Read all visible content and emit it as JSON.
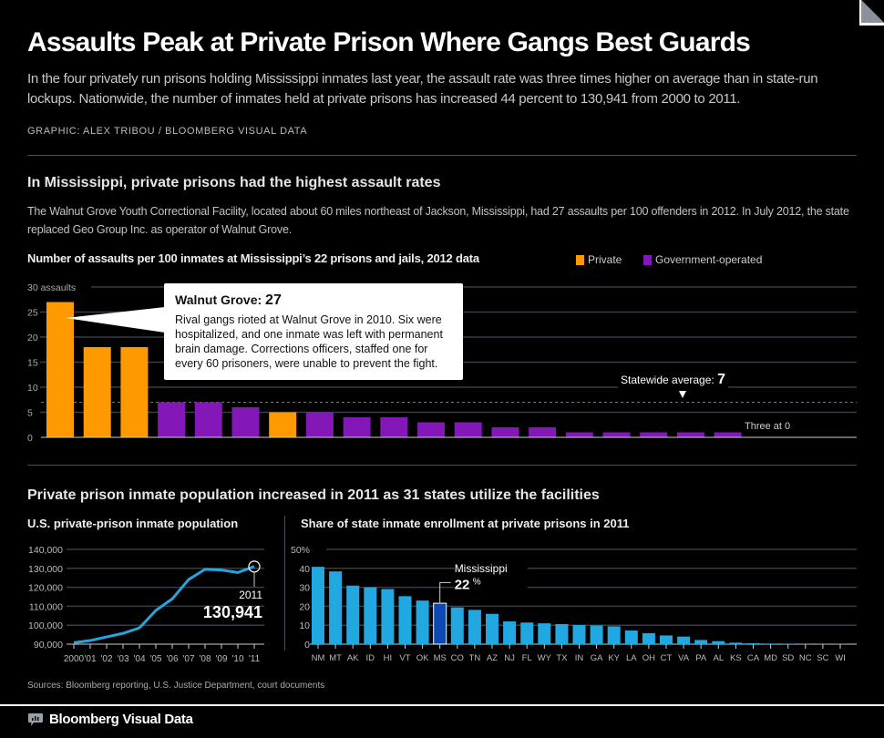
{
  "header": {
    "title": "Assaults Peak at Private Prison Where Gangs Best Guards",
    "subtitle": "In the four privately run prisons holding Mississippi inmates last year, the assault rate was three times higher on average than in state-run lockups. Nationwide, the number of inmates held at private prisons has increased 44 percent to 130,941 from 2000 to 2011.",
    "credit": "GRAPHIC: ALEX TRIBOU / BLOOMBERG VISUAL DATA",
    "corner_icon": "page-curl-icon"
  },
  "section1": {
    "title": "In Mississippi, private prisons had the highest assault rates",
    "description": "The Walnut Grove Youth Correctional Facility, located about 60 miles northeast of Jackson, Mississippi, had 27 assaults per 100 offenders in 2012. In July 2012, the state replaced Geo Group Inc. as operator of Walnut Grove."
  },
  "section2": {
    "title": "Private prison inmate population increased in 2011 as 31 states utilize the facilities"
  },
  "colors": {
    "private": "#FF9900",
    "government": "#8317B8",
    "line": "#29A3DC",
    "share_bar": "#21A8E0",
    "highlight": "#0D49B3",
    "grid": "#3a3d47"
  },
  "chart_data": [
    {
      "type": "bar",
      "title": "Number of assaults per 100 inmates at Mississippi’s 22 prisons and jails, 2012 data",
      "ylabel": "assaults",
      "ylim": [
        0,
        30
      ],
      "yticks": [
        0,
        5,
        10,
        15,
        20,
        25,
        30
      ],
      "ytick_labels": [
        "0",
        "5",
        "10",
        "15",
        "20",
        "25",
        "30 assaults"
      ],
      "legend": [
        {
          "name": "Private",
          "key": "private"
        },
        {
          "name": "Government-operated",
          "key": "government"
        }
      ],
      "legend_position": "top-right",
      "values": [
        27,
        18,
        18,
        7,
        7,
        6,
        5,
        5,
        4,
        4,
        3,
        3,
        2,
        2,
        1,
        1,
        1,
        1,
        1
      ],
      "types": [
        "private",
        "private",
        "private",
        "government",
        "government",
        "government",
        "private",
        "government",
        "government",
        "government",
        "government",
        "government",
        "government",
        "government",
        "government",
        "government",
        "government",
        "government",
        "government"
      ],
      "zero_count": 3,
      "zero_note": "Three at 0",
      "average": 7,
      "average_label": "Statewide average:",
      "average_value": "7",
      "callout": {
        "title": "Walnut Grove:",
        "value": "27",
        "body": "Rival gangs rioted at Walnut Grove in 2010. Six were hospitalized, and one inmate was left with permanent brain damage. Corrections officers, staffed one for every 60 prisoners, were unable to prevent the fight."
      }
    },
    {
      "type": "line",
      "title": "U.S. private-prison inmate population",
      "x": [
        "2000",
        "'01",
        "'02",
        "'03",
        "'04",
        "'05",
        "'06",
        "'07",
        "'08",
        "'09",
        "'10",
        "'11"
      ],
      "values": [
        90800,
        91900,
        93800,
        95700,
        98600,
        107800,
        113900,
        124100,
        129500,
        129100,
        127800,
        130941
      ],
      "ylim": [
        90000,
        140000
      ],
      "yticks": [
        90000,
        100000,
        110000,
        120000,
        130000,
        140000
      ],
      "ytick_labels": [
        "90,000",
        "100,000",
        "110,000",
        "120,000",
        "130,000",
        "140,000"
      ],
      "annotation": {
        "year": "2011",
        "value": "130,941"
      }
    },
    {
      "type": "bar",
      "title": "Share of state inmate enrollment at private prisons in 2011",
      "categories": [
        "NM",
        "MT",
        "AK",
        "ID",
        "HI",
        "VT",
        "OK",
        "MS",
        "CO",
        "TN",
        "AZ",
        "NJ",
        "FL",
        "WY",
        "TX",
        "IN",
        "GA",
        "KY",
        "LA",
        "OH",
        "CT",
        "VA",
        "PA",
        "AL",
        "KS",
        "CA",
        "MD",
        "SD",
        "NC",
        "SC",
        "WI"
      ],
      "values": [
        40.8,
        38.4,
        30.9,
        30.0,
        29.1,
        25.3,
        23.0,
        21.6,
        19.4,
        18.1,
        16.0,
        12.0,
        11.4,
        11.0,
        10.6,
        10.1,
        9.9,
        9.4,
        7.2,
        5.8,
        4.6,
        4.0,
        2.2,
        1.6,
        0.8,
        0.5,
        0.3,
        0.2,
        0.1,
        0.1,
        0.1
      ],
      "ylim": [
        0,
        50
      ],
      "yticks": [
        0,
        10,
        20,
        30,
        40,
        50
      ],
      "ytick_labels": [
        "0",
        "10",
        "20",
        "30",
        "40",
        "50%"
      ],
      "highlight": "MS",
      "annotation": {
        "label": "Mississippi",
        "value": "22",
        "unit": "%"
      }
    }
  ],
  "footer": {
    "sources": "Sources: Bloomberg reporting, U.S. Justice Department, court documents",
    "brand": "Bloomberg Visual Data",
    "brand_icon": "speech-bubble-chart-icon"
  }
}
